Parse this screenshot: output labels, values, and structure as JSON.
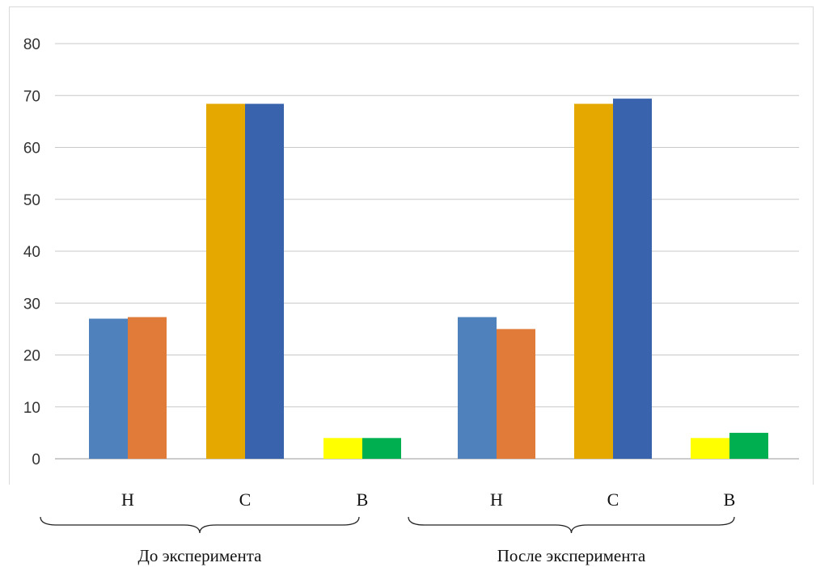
{
  "chart_data": {
    "type": "bar",
    "ylim": [
      0,
      80
    ],
    "yticks": [
      0,
      10,
      20,
      30,
      40,
      50,
      60,
      70,
      80
    ],
    "grid": true,
    "groups": [
      {
        "label": "До эксперимента",
        "categories": [
          {
            "label": "Н",
            "values": [
              27,
              27.3
            ],
            "colors": [
              "#4f81bd",
              "#e07b39"
            ]
          },
          {
            "label": "С",
            "values": [
              68.4,
              68.4
            ],
            "colors": [
              "#e5a800",
              "#3a63ad"
            ]
          },
          {
            "label": "В",
            "values": [
              4,
              4
            ],
            "colors": [
              "#ffff00",
              "#00b050"
            ]
          }
        ]
      },
      {
        "label": "После эксперимента",
        "categories": [
          {
            "label": "Н",
            "values": [
              27.3,
              25
            ],
            "colors": [
              "#4f81bd",
              "#e07b39"
            ]
          },
          {
            "label": "С",
            "values": [
              68.4,
              69.4
            ],
            "colors": [
              "#e5a800",
              "#3a63ad"
            ]
          },
          {
            "label": "В",
            "values": [
              4,
              5
            ],
            "colors": [
              "#ffff00",
              "#00b050"
            ]
          }
        ]
      }
    ]
  }
}
